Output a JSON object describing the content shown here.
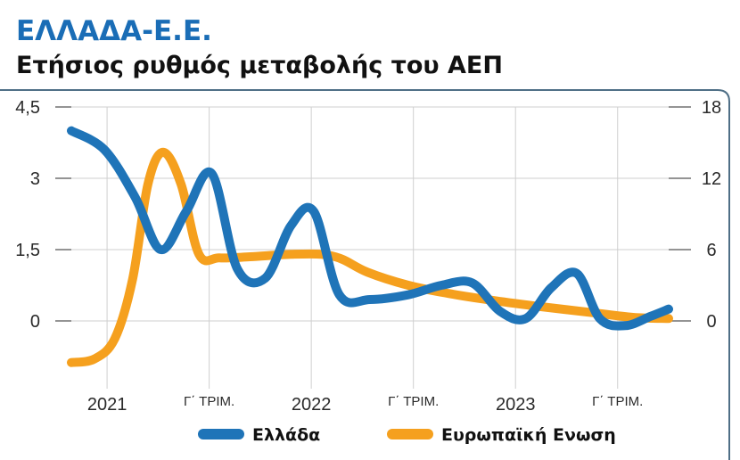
{
  "header": {
    "kicker": "ΕΛΛΑΔΑ-Ε.Ε.",
    "title": "Ετήσιος ρυθμός μεταβολής του ΑΕΠ"
  },
  "colors": {
    "greece": "#1f74b8",
    "eu": "#f5a01e",
    "kicker": "#1a6db6",
    "grid": "#cfcfcf",
    "frame": "#4f6f86"
  },
  "chart_data": {
    "type": "line",
    "title": "Ετήσιος ρυθμός μεταβολής του ΑΕΠ",
    "x_tick_labels": [
      "2021",
      "Γ΄ ΤΡΙΜ.",
      "2022",
      "Γ΄ ΤΡΙΜ.",
      "2023",
      "Γ΄ ΤΡΙΜ."
    ],
    "x_tick_positions": [
      1,
      3,
      5,
      7,
      9,
      11
    ],
    "xlim": [
      0.3,
      12
    ],
    "y_left": {
      "ticks": [
        "0",
        "1,5",
        "3",
        "4,5"
      ],
      "values": [
        0,
        1.5,
        3,
        4.5
      ],
      "ylim": [
        -0.9,
        4.5
      ]
    },
    "y_right": {
      "ticks": [
        "0",
        "6",
        "12",
        "18"
      ],
      "values": [
        0,
        6,
        12,
        18
      ],
      "ylim": [
        -3.6,
        18
      ]
    },
    "grid": true,
    "legend_position": "bottom",
    "series": [
      {
        "name": "Ελλάδα",
        "axis": "left",
        "x": [
          0.3,
          0.95,
          1.55,
          2.05,
          2.55,
          3.05,
          3.55,
          4.1,
          4.6,
          5.05,
          5.55,
          6.15,
          6.9,
          7.55,
          8.15,
          8.7,
          9.2,
          9.7,
          10.2,
          10.65,
          11.15,
          11.65,
          12.0
        ],
        "values": [
          4.0,
          3.6,
          2.6,
          1.5,
          2.3,
          3.1,
          1.1,
          0.9,
          2.0,
          2.3,
          0.55,
          0.45,
          0.55,
          0.75,
          0.8,
          0.2,
          0.05,
          0.7,
          1.0,
          0.05,
          -0.1,
          0.1,
          0.25
        ]
      },
      {
        "name": "Ευρωπαϊκή Ενωση",
        "axis": "right",
        "x": [
          0.3,
          0.75,
          1.15,
          1.5,
          1.8,
          2.1,
          2.45,
          2.8,
          3.2,
          3.8,
          4.6,
          5.2,
          5.6,
          6.1,
          6.9,
          7.7,
          8.6,
          9.5,
          10.5,
          11.3,
          12.0
        ],
        "values": [
          -3.5,
          -3.2,
          -1.5,
          3.5,
          11.5,
          14.2,
          11.5,
          5.6,
          5.3,
          5.4,
          5.6,
          5.6,
          5.2,
          4.1,
          3.0,
          2.3,
          1.7,
          1.2,
          0.7,
          0.3,
          0.2
        ]
      }
    ]
  }
}
